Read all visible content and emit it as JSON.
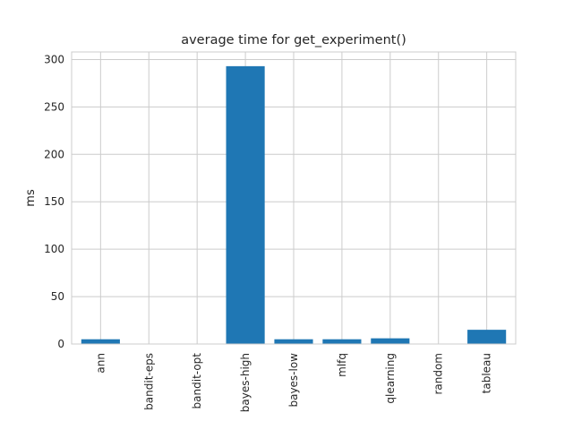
{
  "chart_data": {
    "type": "bar",
    "title": "average time for get_experiment()",
    "xlabel": "",
    "ylabel": "ms",
    "categories": [
      "ann",
      "bandit-eps",
      "bandit-opt",
      "bayes-high",
      "bayes-low",
      "mlfq",
      "qlearning",
      "random",
      "tableau"
    ],
    "values": [
      5,
      0,
      0,
      293,
      5,
      5,
      6,
      0,
      15
    ],
    "ylim": [
      0,
      308
    ],
    "yticks": [
      0,
      50,
      100,
      150,
      200,
      250,
      300
    ],
    "grid": true,
    "bar_color": "#1f77b4"
  }
}
